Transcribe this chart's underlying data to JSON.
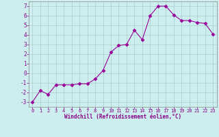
{
  "x": [
    0,
    1,
    2,
    3,
    4,
    5,
    6,
    7,
    8,
    9,
    10,
    11,
    12,
    13,
    14,
    15,
    16,
    17,
    18,
    19,
    20,
    21,
    22,
    23
  ],
  "y": [
    -3,
    -1.8,
    -2.2,
    -1.2,
    -1.2,
    -1.2,
    -1.1,
    -1.1,
    -0.6,
    0.3,
    2.2,
    2.9,
    3.0,
    4.5,
    3.5,
    6.0,
    7.0,
    7.0,
    6.1,
    5.5,
    5.5,
    5.3,
    5.2,
    4.1
  ],
  "line_color": "#990099",
  "marker": "D",
  "marker_size": 2.5,
  "bg_color": "#cceeee",
  "grid_color": "#aacccc",
  "xlabel": "Windchill (Refroidissement éolien,°C)",
  "xlabel_color": "#880088",
  "tick_color": "#880088",
  "axis_color": "#888888",
  "ylim": [
    -3.5,
    7.5
  ],
  "xlim": [
    -0.5,
    23.5
  ],
  "yticks": [
    -3,
    -2,
    -1,
    0,
    1,
    2,
    3,
    4,
    5,
    6,
    7
  ],
  "xticks": [
    0,
    1,
    2,
    3,
    4,
    5,
    6,
    7,
    8,
    9,
    10,
    11,
    12,
    13,
    14,
    15,
    16,
    17,
    18,
    19,
    20,
    21,
    22,
    23
  ]
}
